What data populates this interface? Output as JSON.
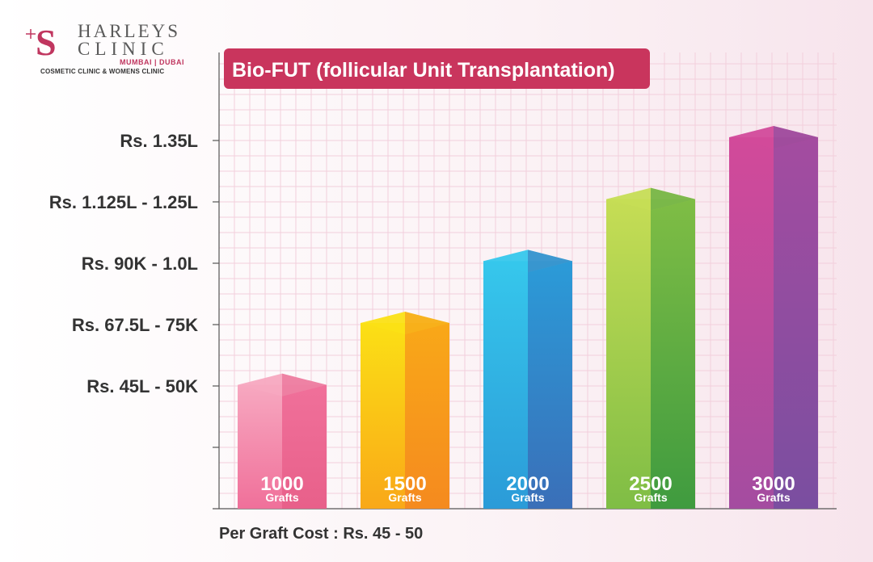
{
  "brand": {
    "name_line1": "HARLEYS",
    "name_line2": "CLINIC",
    "locations": "MUMBAI | DUBAI",
    "tagline": "COSMETIC CLINIC & WOMENS CLINIC",
    "logo_letter": "S",
    "color": "#c0365f"
  },
  "footnote": "Per Graft Cost : Rs. 45 - 50",
  "chart_data": {
    "type": "bar",
    "title": "Bio-FUT (follicular Unit Transplantation)",
    "title_bg": "#c9355d",
    "y_tick_labels": [
      "Rs. 1.35L",
      "Rs. 1.125L - 1.25L",
      "Rs. 90K - 1.0L",
      "Rs. 67.5L - 75K",
      "Rs. 45L - 50K",
      ""
    ],
    "ylim": [
      0,
      3000
    ],
    "grid": true,
    "categories": [
      "1000 Grafts",
      "1500 Grafts",
      "2000 Grafts",
      "2500 Grafts",
      "3000 Grafts"
    ],
    "bars": [
      {
        "number": "1000",
        "unit": "Grafts",
        "value": 1000,
        "colors": [
          "#f7a8c0",
          "#f0709a",
          "#e8608a"
        ]
      },
      {
        "number": "1500",
        "unit": "Grafts",
        "value": 1500,
        "colors": [
          "#fbe015",
          "#f9a818",
          "#f58a1f"
        ]
      },
      {
        "number": "2000",
        "unit": "Grafts",
        "value": 2000,
        "colors": [
          "#36c7ec",
          "#2b9bd8",
          "#3a6fb8"
        ]
      },
      {
        "number": "2500",
        "unit": "Grafts",
        "value": 2500,
        "colors": [
          "#c6dd55",
          "#7fbd45",
          "#3f9b3f"
        ]
      },
      {
        "number": "3000",
        "unit": "Grafts",
        "value": 3000,
        "colors": [
          "#d24a9a",
          "#a44ca0",
          "#7a4ea0"
        ]
      }
    ]
  }
}
